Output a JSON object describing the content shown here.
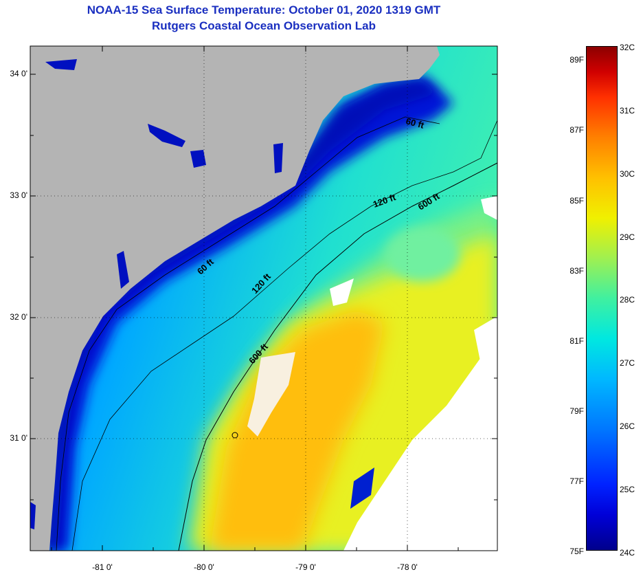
{
  "title_line1": "NOAA-15 Sea Surface Temperature:  October 01, 2020 1319 GMT",
  "title_line2": "Rutgers Coastal Ocean Observation Lab",
  "latitude_labels": [
    "34 0'",
    "33 0'",
    "32 0'",
    "31 0'"
  ],
  "longitude_labels": [
    "-81 0'",
    "-80 0'",
    "-79 0'",
    "-78 0'"
  ],
  "contour_labels": [
    "60 ft",
    "120 ft",
    "600 ft",
    "60 ft",
    "120 ft",
    "600 ft"
  ],
  "colorbar": {
    "fahrenheit": [
      "89F",
      "87F",
      "85F",
      "83F",
      "81F",
      "79F",
      "77F",
      "75F"
    ],
    "celsius": [
      "32C",
      "31C",
      "30C",
      "29C",
      "28C",
      "27C",
      "26C",
      "25C",
      "24C"
    ]
  },
  "colors": {
    "land": "#b4b4b4",
    "cloud": "#ffffff",
    "title": "#1a2fc0",
    "coastal_water": "#0018d8",
    "shelf_water": "#00a8ff",
    "gulf_stream": "#ffc800"
  }
}
